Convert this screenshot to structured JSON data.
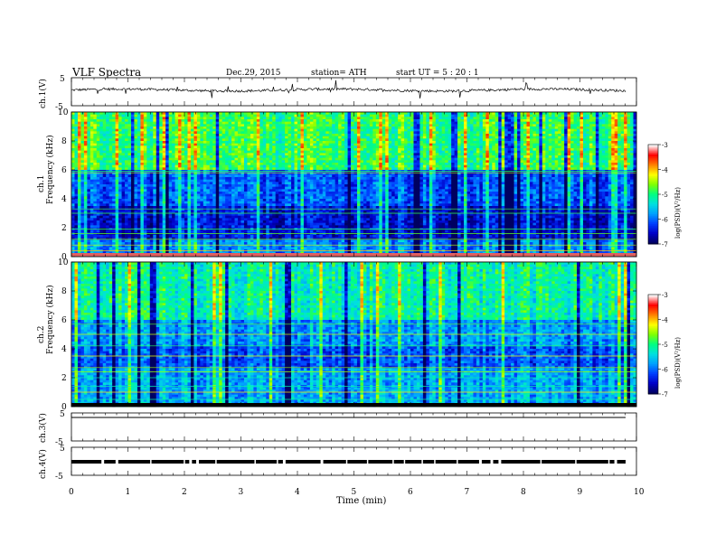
{
  "header": {
    "title": "VLF  Spectra",
    "date": "Dec.29, 2015",
    "station": "station= ATH",
    "start_ut": "start  UT  =    5   : 20 : 1"
  },
  "chart_data": [
    {
      "type": "line",
      "panel": "ch1-waveform",
      "ylabel": "ch.1(V)",
      "ylim": [
        -5,
        5
      ],
      "ytick_labels": [
        "5",
        "-5"
      ],
      "xlim": [
        0,
        10
      ]
    },
    {
      "type": "heatmap",
      "panel": "ch1-spectrogram",
      "ylabel": "ch.1\nFrequency  (kHz)",
      "ylim": [
        0,
        10
      ],
      "ytick_labels": [
        "0",
        "2",
        "4",
        "6",
        "8",
        "10"
      ],
      "xlim": [
        0,
        10
      ],
      "colorbar": {
        "label": "log(PSD)(V²/Hz)",
        "range": [
          -7,
          -3
        ],
        "tick_labels": [
          "-3",
          "-4",
          "-5",
          "-6",
          "-7"
        ]
      }
    },
    {
      "type": "heatmap",
      "panel": "ch2-spectrogram",
      "ylabel": "ch.2\nFrequency  (kHz)",
      "ylim": [
        0,
        10
      ],
      "ytick_labels": [
        "0",
        "2",
        "4",
        "6",
        "8",
        "10"
      ],
      "xlim": [
        0,
        10
      ],
      "colorbar": {
        "label": "log(PSD)(V²/Hz)",
        "range": [
          -7,
          -3
        ],
        "tick_labels": [
          "-3",
          "-4",
          "-5",
          "-6",
          "-7"
        ]
      }
    },
    {
      "type": "line",
      "panel": "ch3-waveform",
      "ylabel": "ch.3(V)",
      "ylim": [
        -5,
        5
      ],
      "ytick_labels": [
        "5",
        "-5"
      ],
      "xlim": [
        0,
        10
      ]
    },
    {
      "type": "line",
      "panel": "ch4-waveform",
      "ylabel": "ch.4(V)",
      "ylim": [
        -5,
        5
      ],
      "ytick_labels": [
        "5",
        "-5"
      ],
      "xlim": [
        0,
        10
      ]
    }
  ],
  "xaxis": {
    "label": "Time  (min)",
    "tick_labels": [
      "0",
      "1",
      "2",
      "3",
      "4",
      "5",
      "6",
      "7",
      "8",
      "9",
      "10"
    ]
  },
  "colors": {
    "colormap": [
      "#000060",
      "#0000c8",
      "#0040ff",
      "#00a0ff",
      "#00e0e0",
      "#00ff80",
      "#80ff00",
      "#ffff00",
      "#ff8000",
      "#ff0000",
      "#ffffff"
    ]
  }
}
